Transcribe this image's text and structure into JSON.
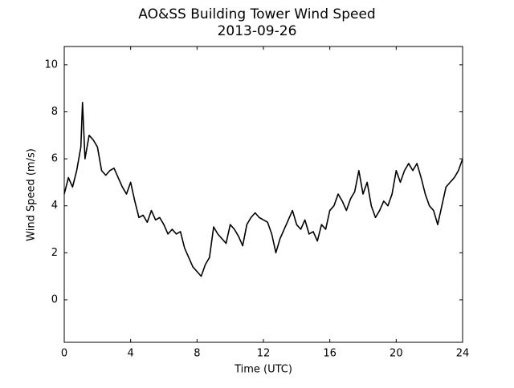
{
  "chart_data": {
    "type": "line",
    "title": "AO&SS Building Tower Wind Speed",
    "subtitle": "2013-09-26",
    "x_label": "Time (UTC)",
    "y_label": "Wind Speed (m/s)",
    "x": [
      0,
      0.25,
      0.5,
      0.75,
      1,
      1.1,
      1.25,
      1.5,
      1.75,
      2,
      2.25,
      2.5,
      2.75,
      3,
      3.25,
      3.5,
      3.75,
      4,
      4.25,
      4.5,
      4.75,
      5,
      5.25,
      5.5,
      5.75,
      6,
      6.25,
      6.5,
      6.75,
      7,
      7.25,
      7.5,
      7.75,
      8,
      8.25,
      8.5,
      8.75,
      9,
      9.25,
      9.5,
      9.75,
      10,
      10.25,
      10.5,
      10.75,
      11,
      11.25,
      11.5,
      11.75,
      12,
      12.25,
      12.5,
      12.75,
      13,
      13.25,
      13.5,
      13.75,
      14,
      14.25,
      14.5,
      14.75,
      15,
      15.25,
      15.5,
      15.75,
      16,
      16.25,
      16.5,
      16.75,
      17,
      17.25,
      17.5,
      17.75,
      18,
      18.25,
      18.5,
      18.75,
      19,
      19.25,
      19.5,
      19.75,
      20,
      20.25,
      20.5,
      20.75,
      21,
      21.25,
      21.5,
      21.75,
      22,
      22.25,
      22.5,
      22.75,
      23,
      23.25,
      23.5,
      23.75,
      24
    ],
    "values": [
      4.5,
      5.2,
      4.8,
      5.5,
      6.5,
      8.4,
      6.0,
      7.0,
      6.8,
      6.5,
      5.5,
      5.3,
      5.5,
      5.6,
      5.2,
      4.8,
      4.5,
      5.0,
      4.2,
      3.5,
      3.6,
      3.3,
      3.8,
      3.4,
      3.5,
      3.2,
      2.8,
      3.0,
      2.8,
      2.9,
      2.2,
      1.8,
      1.4,
      1.2,
      1.0,
      1.5,
      1.8,
      3.1,
      2.8,
      2.6,
      2.4,
      3.2,
      3.0,
      2.7,
      2.3,
      3.2,
      3.5,
      3.7,
      3.5,
      3.4,
      3.3,
      2.8,
      2.0,
      2.6,
      3.0,
      3.4,
      3.8,
      3.2,
      3.0,
      3.4,
      2.8,
      2.9,
      2.5,
      3.2,
      3.0,
      3.8,
      4.0,
      4.5,
      4.2,
      3.8,
      4.3,
      4.6,
      5.5,
      4.5,
      5.0,
      4.0,
      3.5,
      3.8,
      4.2,
      4.0,
      4.5,
      5.5,
      5.0,
      5.5,
      5.8,
      5.5,
      5.8,
      5.2,
      4.5,
      4.0,
      3.8,
      3.2,
      4.0,
      4.8,
      5.0,
      5.2,
      5.5,
      6.0
    ],
    "color": "#000000",
    "xlim": [
      0,
      24
    ],
    "xticks": [
      0,
      4,
      8,
      12,
      16,
      20,
      24
    ],
    "ylim": [
      -1.81,
      10.78
    ],
    "yticks": [
      0,
      2,
      4,
      6,
      8,
      10
    ]
  }
}
